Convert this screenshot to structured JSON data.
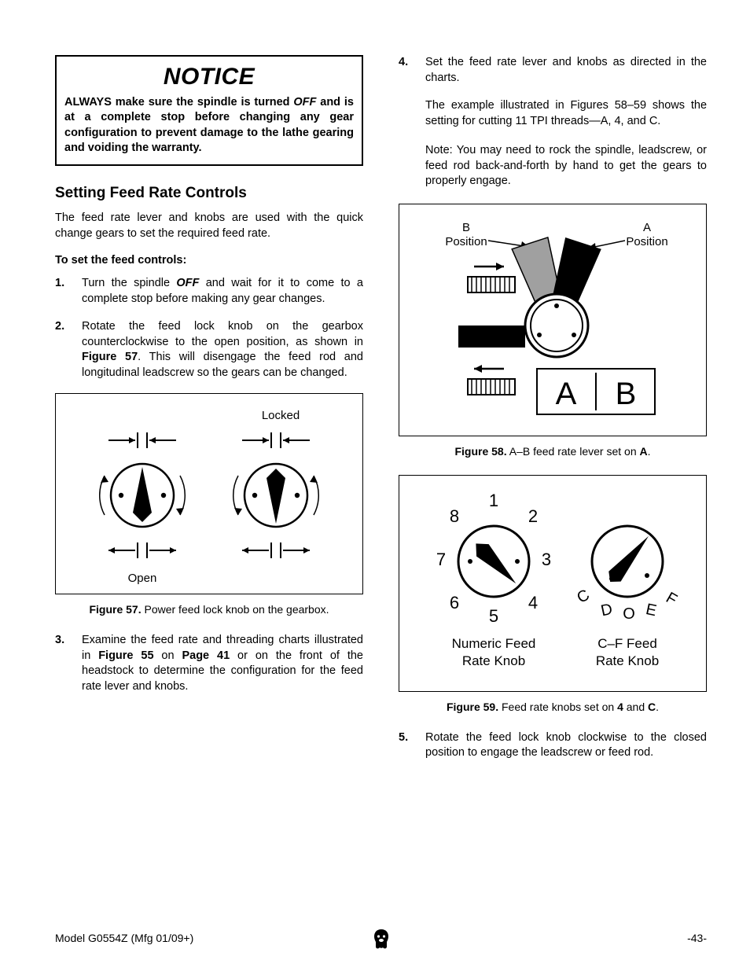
{
  "notice": {
    "title": "NOTICE",
    "body_html": "ALWAYS make sure the spindle is turned <span class=\"off\">OFF</span> and is at a complete stop before changing any gear configuration to prevent damage to the lathe gearing and voiding the warranty."
  },
  "section_heading": "Setting Feed Rate Controls",
  "intro": "The feed rate lever and knobs are used with the quick change gears to set the required feed rate.",
  "subhead": "To set the feed controls:",
  "steps": {
    "s1_html": "Turn the spindle <span class=\"bold ital\">OFF</span> and wait for it to come to a complete stop before making any gear changes.",
    "s2_html": "Rotate the feed lock knob on the gearbox counterclockwise to the open position, as shown in <span class=\"bold\">Figure 57</span>. This will disengage the feed rod and longitudinal leadscrew so the gears can be changed.",
    "s3_html": "Examine the feed rate and threading charts illustrated in <span class=\"bold\">Figure 55</span> on <span class=\"bold\">Page 41</span> or on the front of the headstock to determine the configuration for the feed rate lever and knobs.",
    "s4_html": "Set the feed rate lever and knobs as directed in the charts.",
    "s4_sub_html": "The example illustrated in <span class=\"bold\">Figures 58–59</span> shows the setting for cutting 11 TPI threads—<span class=\"bold\">A</span>, <span class=\"bold\">4</span>, and <span class=\"bold\">C</span>.",
    "s4_note_html": "<span class=\"bold\">Note:</span> <span class=\"ital\">You may need to rock the spindle, leadscrew, or feed rod back-and-forth by hand to get the gears to properly engage.</span>",
    "s5_html": "Rotate the feed lock knob clockwise to the closed position to engage the leadscrew or feed rod."
  },
  "fig57": {
    "locked_label": "Locked",
    "open_label": "Open",
    "caption_html": "<span class=\"bold\">Figure 57.</span> Power feed lock knob on the gearbox."
  },
  "fig58": {
    "labels": {
      "b_pos": "B",
      "b_pos2": "Position",
      "a_pos": "A",
      "a_pos2": "Position",
      "ab": "A   B"
    },
    "caption_html": "<span class=\"bold\">Figure 58.</span> A–B feed rate lever set on <span class=\"bold\">A</span>."
  },
  "fig59": {
    "numeric_label": "Numeric Feed Rate Knob",
    "cf_label": "C–F Feed Rate Knob",
    "nums": [
      "1",
      "2",
      "3",
      "4",
      "5",
      "6",
      "7",
      "8"
    ],
    "letters": [
      "C",
      "D",
      "O",
      "E",
      "F"
    ],
    "caption_html": "<span class=\"bold\">Figure 59.</span> Feed rate knobs set on <span class=\"bold\">4</span> and <span class=\"bold\">C</span>."
  },
  "footer": {
    "left": "Model G0554Z (Mfg 01/09+)",
    "right": "-43-"
  },
  "colors": {
    "black": "#000000",
    "gray": "#a0a0a0",
    "white": "#ffffff"
  }
}
